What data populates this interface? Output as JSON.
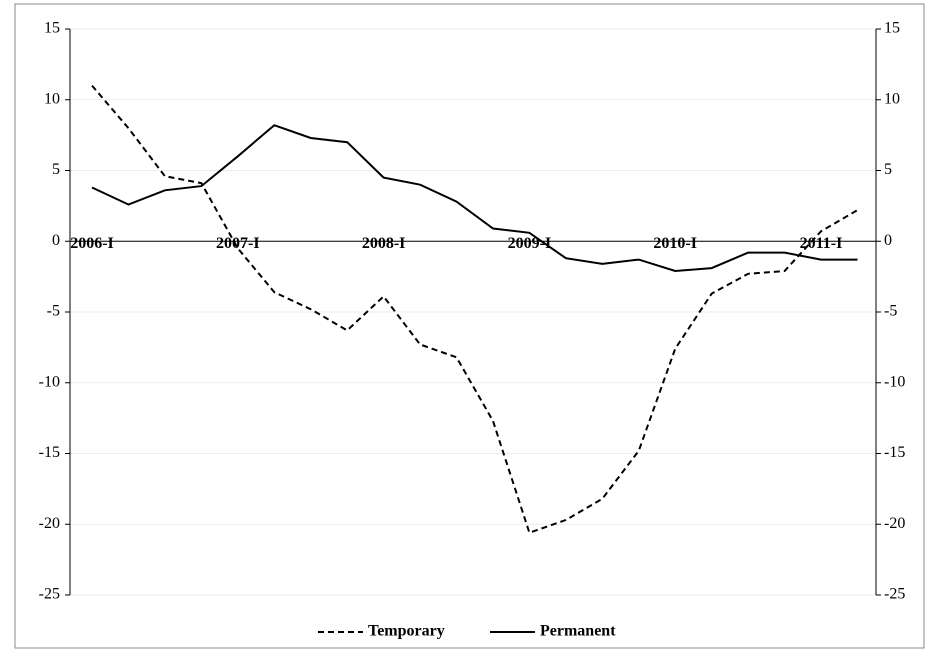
{
  "chart_data": {
    "type": "line",
    "categories": [
      "2006-I",
      null,
      null,
      null,
      "2007-I",
      null,
      null,
      null,
      "2008-I",
      null,
      null,
      null,
      "2009-I",
      null,
      null,
      null,
      "2010-I",
      null,
      null,
      null,
      "2011-I",
      null
    ],
    "series": [
      {
        "name": "Temporary",
        "color": "#000000",
        "dash": true,
        "values": [
          11.0,
          8.0,
          4.6,
          4.1,
          -0.5,
          -3.6,
          -4.8,
          -6.3,
          -3.9,
          -7.3,
          -8.2,
          -12.7,
          -20.6,
          -19.7,
          -18.2,
          -14.8,
          -7.6,
          -3.7,
          -2.3,
          -2.1,
          0.7,
          2.2
        ]
      },
      {
        "name": "Permanent",
        "color": "#000000",
        "dash": false,
        "values": [
          3.8,
          2.6,
          3.6,
          3.9,
          6.0,
          8.2,
          7.3,
          7.0,
          4.5,
          4.0,
          2.8,
          0.9,
          0.6,
          -1.2,
          -1.6,
          -1.3,
          -2.1,
          -1.9,
          -0.8,
          -0.8,
          -1.3,
          -1.3
        ]
      }
    ],
    "ylim": [
      -25,
      15
    ],
    "yticks": [
      15,
      10,
      5,
      0,
      -5,
      -10,
      -15,
      -20,
      -25
    ],
    "y2lim": [
      -25,
      15
    ],
    "y2ticks": [
      15,
      10,
      5,
      0,
      -5,
      -10,
      -15,
      -20,
      -25
    ],
    "grid": true,
    "legend": "bottom"
  }
}
